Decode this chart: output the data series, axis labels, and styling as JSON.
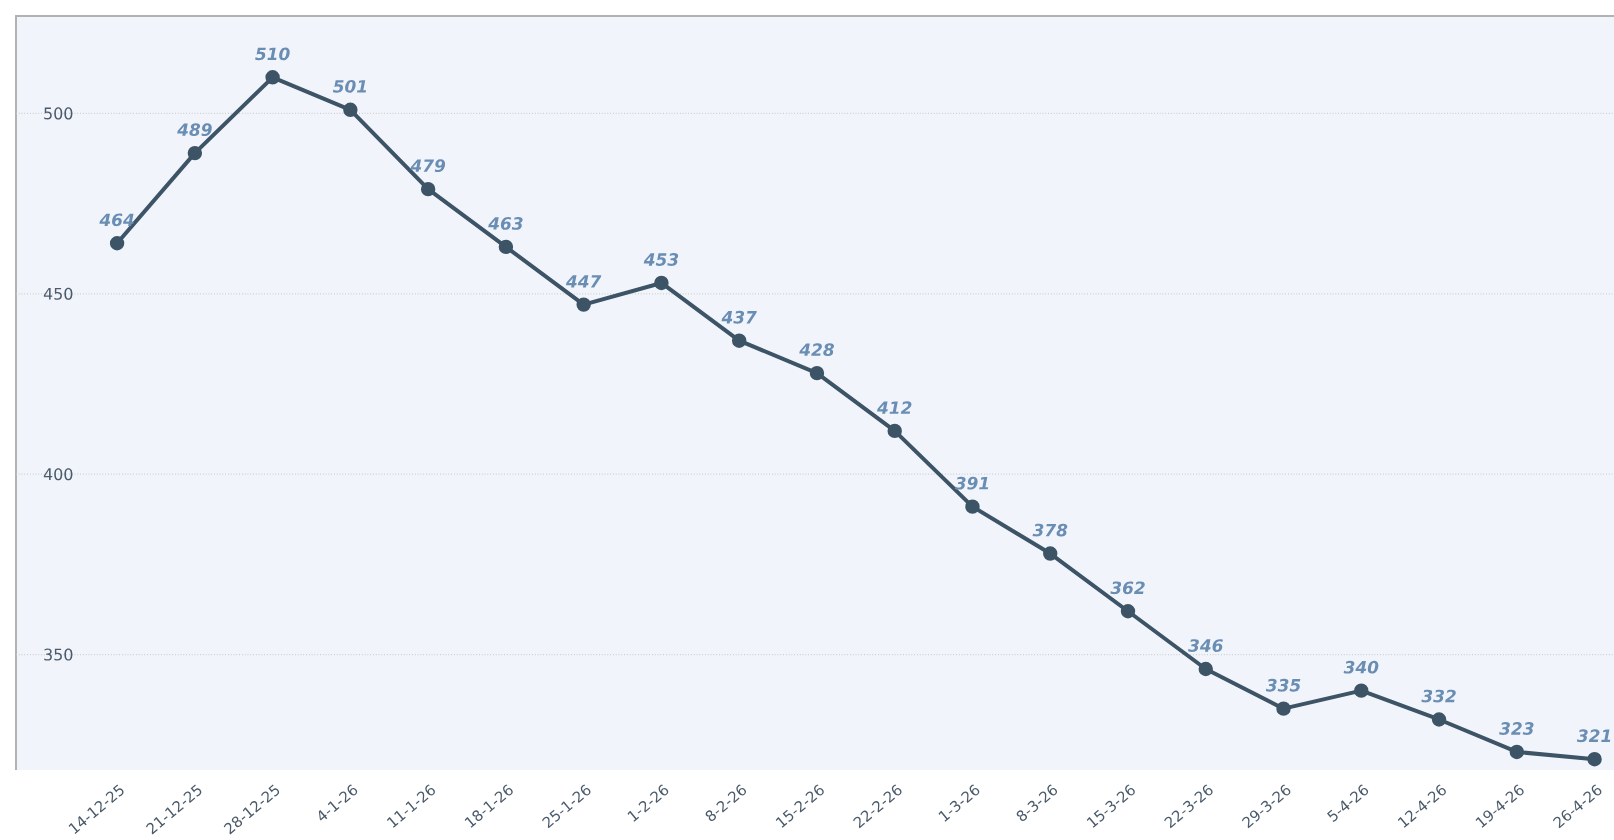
{
  "chart_data": {
    "type": "line",
    "categories": [
      "14-12-25",
      "21-12-25",
      "28-12-25",
      "4-1-26",
      "11-1-26",
      "18-1-26",
      "25-1-26",
      "1-2-26",
      "8-2-26",
      "15-2-26",
      "22-2-26",
      "1-3-26",
      "8-3-26",
      "15-3-26",
      "22-3-26",
      "29-3-26",
      "5-4-26",
      "12-4-26",
      "19-4-26",
      "26-4-26"
    ],
    "values": [
      464,
      489,
      510,
      501,
      479,
      463,
      447,
      453,
      437,
      428,
      412,
      391,
      378,
      362,
      346,
      335,
      340,
      332,
      323,
      321
    ],
    "color": "#3d5366",
    "ylim": [
      318,
      527
    ],
    "yticks": [
      350,
      400,
      450,
      500
    ],
    "grid": "y",
    "marker": "circle",
    "line_style": "solid",
    "data_labels": true
  }
}
